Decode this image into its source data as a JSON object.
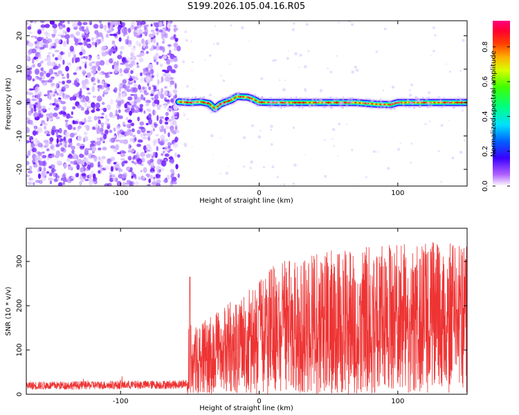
{
  "title": "S199.2026.105.04.16.R05",
  "chart_data": [
    {
      "type": "heatmap",
      "name": "spectrogram",
      "xlabel": "Height of straight line (km)",
      "ylabel": "Frequency (Hz)",
      "xlim": [
        -168,
        150
      ],
      "ylim": [
        -25,
        24.5
      ],
      "xticks": [
        -100,
        0,
        100
      ],
      "yticks": [
        -20,
        -10,
        0,
        10,
        20
      ],
      "colorbar": {
        "label": "Normalized spectral amplitude",
        "range": [
          0,
          0.95
        ],
        "ticks": [
          0.0,
          0.2,
          0.4,
          0.6,
          0.8
        ]
      },
      "noise_region_end_km": -58,
      "ridge": {
        "x_km": [
          -58,
          -50,
          -42,
          -36,
          -32,
          -28,
          -24,
          -20,
          -16,
          -12,
          -8,
          -4,
          0,
          10,
          30,
          50,
          70,
          85,
          95,
          100,
          120,
          150
        ],
        "freq_hz": [
          0.2,
          0.0,
          0.2,
          -0.3,
          -1.8,
          -0.5,
          0.2,
          0.8,
          1.8,
          1.7,
          1.6,
          1.0,
          0.1,
          0.0,
          0.0,
          0.0,
          0.0,
          -0.5,
          -0.6,
          0.0,
          0.0,
          0.0
        ]
      }
    },
    {
      "type": "line",
      "name": "snr",
      "xlabel": "Height of straight line (km)",
      "ylabel": "SNR (10 * v/v)",
      "xlim": [
        -168,
        150
      ],
      "ylim": [
        0,
        375
      ],
      "xticks": [
        -100,
        0,
        100
      ],
      "yticks": [
        0,
        100,
        200,
        300
      ],
      "series": [
        {
          "name": "SNR",
          "color": "#ee3333",
          "x": [
            -168,
            -60,
            -52,
            -50,
            -49,
            -45,
            -40,
            -30,
            -20,
            -10,
            0,
            10,
            20,
            30,
            40,
            50,
            60,
            80,
            100,
            120,
            140,
            150
          ],
          "base": [
            10,
            12,
            14,
            30,
            60,
            80,
            90,
            100,
            110,
            120,
            130,
            140,
            145,
            150,
            150,
            150,
            150,
            150,
            150,
            150,
            150,
            150
          ],
          "peak": [
            32,
            35,
            38,
            265,
            120,
            160,
            170,
            190,
            210,
            230,
            255,
            290,
            305,
            315,
            320,
            325,
            330,
            335,
            340,
            345,
            340,
            335
          ]
        }
      ]
    }
  ]
}
